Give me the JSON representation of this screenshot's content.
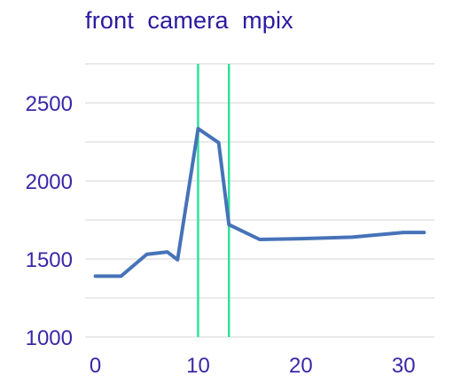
{
  "chart_data": {
    "type": "line",
    "title": "front  camera  mpix",
    "xlabel": "",
    "ylabel": "",
    "x": [
      0,
      2.5,
      5,
      7,
      8,
      10,
      12,
      13,
      16,
      20,
      25,
      30,
      32
    ],
    "series": [
      {
        "values": [
          1390,
          1390,
          1530,
          1545,
          1495,
          2335,
          2245,
          1720,
          1625,
          1630,
          1640,
          1670,
          1670
        ]
      }
    ],
    "xlim": [
      -1,
      33
    ],
    "ylim": [
      1000,
      2750
    ],
    "x_ticks": [
      "0",
      "10",
      "20",
      "30"
    ],
    "y_ticks": [
      "1000",
      "1500",
      "2000",
      "2500"
    ],
    "vertical_markers": [
      10,
      13
    ],
    "grid": true,
    "legend": "none",
    "colors": {
      "title": "#2a1aa0",
      "tick_labels": "#3a28a8",
      "line": "#4672b8",
      "markers": "#2ee39a",
      "grid": "#e3e3e3"
    }
  }
}
